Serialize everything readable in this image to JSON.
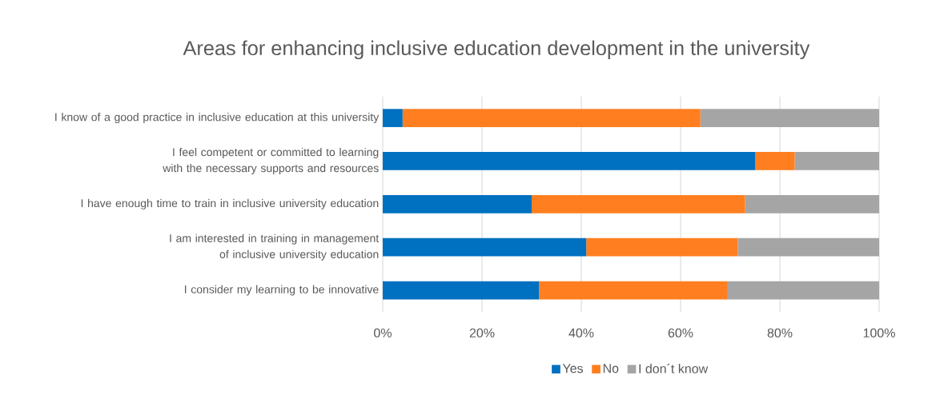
{
  "chart_data": {
    "type": "bar",
    "orientation": "horizontal",
    "stacked": true,
    "title": "Areas for enhancing inclusive education development in the university",
    "categories": [
      "I know of a good practice in inclusive education at this university",
      "I feel competent or committed to learning with the necessary supports and resources",
      "I have enough time to train in inclusive university education",
      "I am interested in training in management of inclusive university education",
      "I consider my learning to be innovative"
    ],
    "series": [
      {
        "name": "Yes",
        "color": "#0070c0",
        "values": [
          4,
          75,
          30,
          41,
          31.5
        ]
      },
      {
        "name": "No",
        "color": "#ff7f20",
        "values": [
          60,
          8,
          43,
          30.5,
          38
        ]
      },
      {
        "name": "I don´t know",
        "color": "#a5a5a5",
        "values": [
          36,
          17,
          27,
          28.5,
          30.5
        ]
      }
    ],
    "xlim": [
      0,
      100
    ],
    "xticks": [
      {
        "value": 0,
        "label": "0%"
      },
      {
        "value": 20,
        "label": "20%"
      },
      {
        "value": 40,
        "label": "40%"
      },
      {
        "value": 60,
        "label": "60%"
      },
      {
        "value": 80,
        "label": "80%"
      },
      {
        "value": 100,
        "label": "100%"
      }
    ],
    "grid": "x",
    "legend": "bottom"
  }
}
